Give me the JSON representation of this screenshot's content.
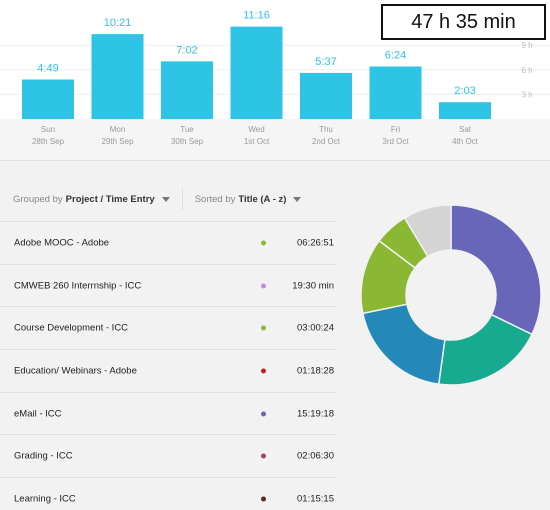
{
  "total": "47 h 35 min",
  "chart_data": {
    "type": "bar",
    "categories": [
      "Sun",
      "Mon",
      "Tue",
      "Wed",
      "Thu",
      "Fri",
      "Sat"
    ],
    "dates": [
      "28th Sep",
      "29th Sep",
      "30th Sep",
      "1st Oct",
      "2nd Oct",
      "3rd Oct",
      "4th Oct"
    ],
    "values": [
      4.817,
      10.35,
      7.033,
      11.267,
      5.617,
      6.4,
      2.05
    ],
    "value_labels": [
      "4:49",
      "10:21",
      "7:02",
      "11:16",
      "5:37",
      "6:24",
      "2:03"
    ],
    "yticks": [
      3,
      6,
      9
    ],
    "ytick_labels": [
      "3 h",
      "6 h",
      "9 h"
    ],
    "color": "#2ec4e6"
  },
  "controls": {
    "group_prefix": "Grouped by",
    "group_value": "Project / Time Entry",
    "sort_prefix": "Sorted by",
    "sort_value": "Title (A - z)"
  },
  "entries": [
    {
      "name": "Adobe MOOC - Adobe",
      "duration": "06:26:51",
      "color": "#8bb832"
    },
    {
      "name": "CMWEB 260 Interrnship - ICC",
      "duration": "19:30 min",
      "color": "#c58ae8"
    },
    {
      "name": "Course Development - ICC",
      "duration": "03:00:24",
      "color": "#8bb832"
    },
    {
      "name": "Education/ Webinars - Adobe",
      "duration": "01:18:28",
      "color": "#c41e1e"
    },
    {
      "name": "eMail - ICC",
      "duration": "15:19:18",
      "color": "#6766b8"
    },
    {
      "name": "Grading - ICC",
      "duration": "02:06:30",
      "color": "#a0436c"
    },
    {
      "name": "Learning - ICC",
      "duration": "01:15:15",
      "color": "#5a2c1c"
    }
  ],
  "donut": {
    "segments": [
      {
        "value": 15.32,
        "color": "#6766b8"
      },
      {
        "value": 9.5,
        "color": "#17aa91"
      },
      {
        "value": 9.3,
        "color": "#2489b8"
      },
      {
        "value": 6.45,
        "color": "#8bb832"
      },
      {
        "value": 2.9,
        "color": "#8bb832"
      },
      {
        "value": 4.1,
        "color": "#d4d4d4"
      }
    ]
  }
}
